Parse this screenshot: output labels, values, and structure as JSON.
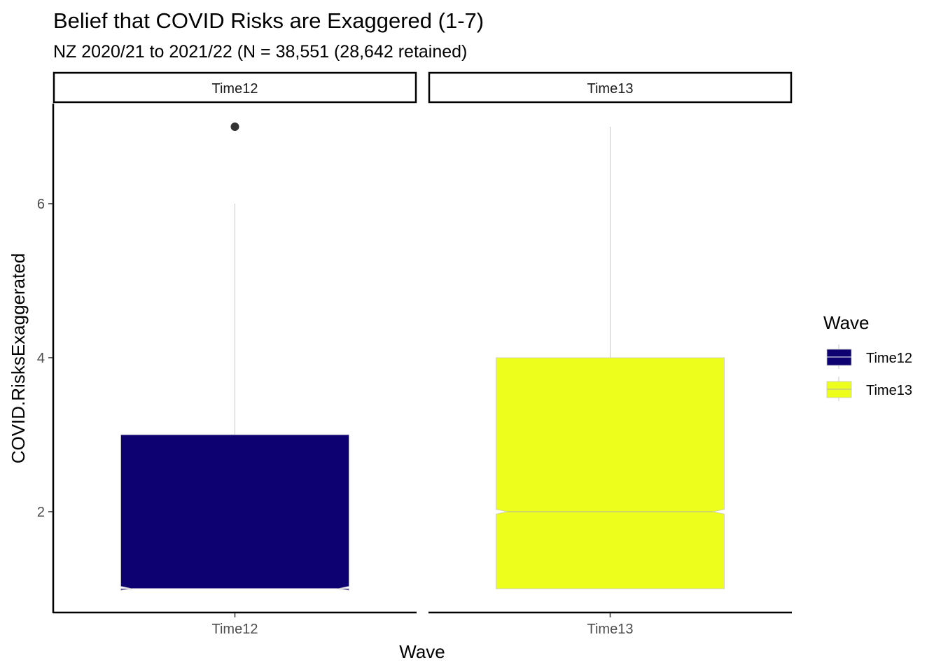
{
  "chart_data": {
    "type": "boxplot",
    "title": "Belief that COVID Risks are Exaggered (1-7)",
    "subtitle": "NZ 2020/21 to 2021/22 (N = 38,551 (28,642 retained)",
    "xlabel": "Wave",
    "ylabel": "COVID.RisksExaggerated",
    "ylim": [
      0.7,
      7.3
    ],
    "yticks": [
      2,
      4,
      6
    ],
    "notched": true,
    "grid": false,
    "legend": {
      "title": "Wave",
      "placement": "right",
      "entries": [
        "Time12",
        "Time13"
      ]
    },
    "panels": [
      {
        "facet": "Time12",
        "category": "Time12",
        "color": "#0d0070",
        "min": 1,
        "q1": 1,
        "median": 1,
        "q3": 3,
        "max": 6,
        "notch_low": 0.98,
        "notch_high": 1.03,
        "outliers": [
          7
        ]
      },
      {
        "facet": "Time13",
        "category": "Time13",
        "color": "#edfd1c",
        "min": 1,
        "q1": 1,
        "median": 2,
        "q3": 4,
        "max": 7,
        "notch_low": 1.97,
        "notch_high": 2.03,
        "outliers": []
      }
    ]
  }
}
